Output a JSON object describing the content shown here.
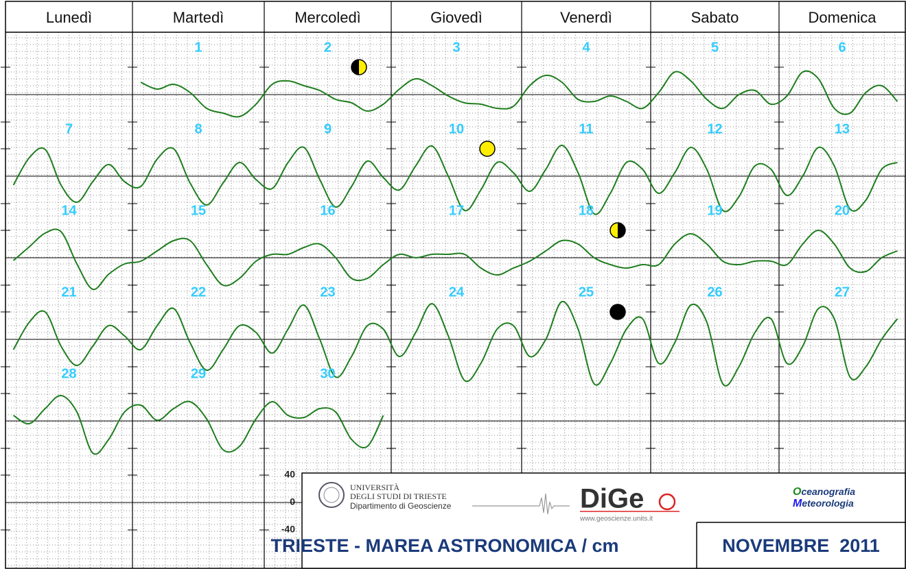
{
  "header": {
    "weekdays": [
      "Lunedì",
      "Martedì",
      "Mercoledì",
      "Giovedì",
      "Venerdì",
      "Sabato",
      "Domenica"
    ]
  },
  "days": [
    {
      "day": 1,
      "tide": [
        18,
        8,
        15,
        3,
        -20,
        -27,
        -32,
        -14
      ]
    },
    {
      "day": 2,
      "tide": [
        15,
        20,
        13,
        6,
        -7,
        -12,
        -24,
        -14
      ]
    },
    {
      "day": 3,
      "tide": [
        8,
        23,
        13,
        -2,
        -12,
        -14,
        -20,
        -17
      ]
    },
    {
      "day": 4,
      "tide": [
        13,
        28,
        18,
        -7,
        -10,
        -2,
        -10,
        -20
      ]
    },
    {
      "day": 5,
      "tide": [
        3,
        33,
        20,
        -7,
        -20,
        0,
        6,
        -14
      ]
    },
    {
      "day": 6,
      "tide": [
        -2,
        33,
        23,
        -20,
        -27,
        3,
        13,
        -10
      ]
    },
    {
      "day": 7,
      "tide": [
        -13,
        27,
        39,
        -13,
        -38,
        -8,
        17,
        -8
      ]
    },
    {
      "day": 8,
      "tide": [
        -15,
        25,
        40,
        -10,
        -42,
        -10,
        20,
        -5
      ]
    },
    {
      "day": 9,
      "tide": [
        -18,
        20,
        42,
        -5,
        -45,
        -15,
        22,
        -2
      ]
    },
    {
      "day": 10,
      "tide": [
        -20,
        15,
        44,
        0,
        -50,
        -20,
        20,
        5
      ]
    },
    {
      "day": 11,
      "tide": [
        -22,
        10,
        45,
        5,
        -55,
        -25,
        20,
        10
      ]
    },
    {
      "day": 12,
      "tide": [
        -25,
        5,
        42,
        10,
        -50,
        -30,
        15,
        10
      ]
    },
    {
      "day": 13,
      "tide": [
        -28,
        0,
        42,
        15,
        -48,
        -35,
        10,
        20
      ]
    },
    {
      "day": 14,
      "tide": [
        -4,
        16,
        36,
        38,
        -9,
        -46,
        -24,
        -9
      ]
    },
    {
      "day": 15,
      "tide": [
        -5,
        10,
        25,
        25,
        -10,
        -40,
        -30,
        -5
      ]
    },
    {
      "day": 16,
      "tide": [
        5,
        5,
        15,
        20,
        0,
        -30,
        -30,
        -10
      ]
    },
    {
      "day": 17,
      "tide": [
        5,
        0,
        5,
        5,
        5,
        -15,
        -25,
        -15
      ]
    },
    {
      "day": 18,
      "tide": [
        -5,
        10,
        25,
        20,
        0,
        -10,
        -15,
        -10
      ]
    },
    {
      "day": 19,
      "tide": [
        -10,
        20,
        35,
        20,
        -5,
        -10,
        -5,
        -5
      ]
    },
    {
      "day": 20,
      "tide": [
        -10,
        20,
        40,
        20,
        -15,
        -20,
        0,
        10
      ]
    },
    {
      "day": 21,
      "tide": [
        -15,
        25,
        40,
        -10,
        -38,
        -10,
        20,
        5
      ]
    },
    {
      "day": 22,
      "tide": [
        -15,
        20,
        45,
        -5,
        -45,
        -15,
        20,
        10
      ]
    },
    {
      "day": 23,
      "tide": [
        -20,
        15,
        50,
        0,
        -55,
        -25,
        20,
        15
      ]
    },
    {
      "day": 24,
      "tide": [
        -25,
        10,
        52,
        5,
        -60,
        -35,
        15,
        20
      ]
    },
    {
      "day": 25,
      "tide": [
        -25,
        0,
        55,
        15,
        -65,
        -35,
        15,
        30
      ]
    },
    {
      "day": 26,
      "tide": [
        -35,
        -5,
        50,
        25,
        -65,
        -40,
        10,
        30
      ]
    },
    {
      "day": 27,
      "tide": [
        -35,
        -10,
        45,
        30,
        -55,
        -40,
        0,
        30
      ]
    },
    {
      "day": 28,
      "tide": [
        8,
        -4,
        18,
        37,
        13,
        -47,
        -27,
        13
      ]
    },
    {
      "day": 29,
      "tide": [
        23,
        1,
        18,
        28,
        3,
        -42,
        -37,
        3
      ]
    },
    {
      "day": 30,
      "tide": [
        28,
        8,
        5,
        18,
        13,
        -27,
        -37,
        8
      ]
    }
  ],
  "scale": {
    "ticks": [
      40,
      0,
      -40
    ]
  },
  "footer": {
    "university": "UNIVERSITÀ",
    "university_line2": "DEGLI STUDI DI TRIESTE",
    "department": "Dipartimento di Geoscienze",
    "logo": "DiGe",
    "website": "www.geoscienze.units.it",
    "oceanografia": {
      "initial": "O",
      "rest": "ceanografia"
    },
    "meteorologia": {
      "initial": "M",
      "rest": "eteorologia"
    },
    "title": "TRIESTE - MAREA ASTRONOMICA / cm",
    "month": "NOVEMBRE  2011"
  }
}
